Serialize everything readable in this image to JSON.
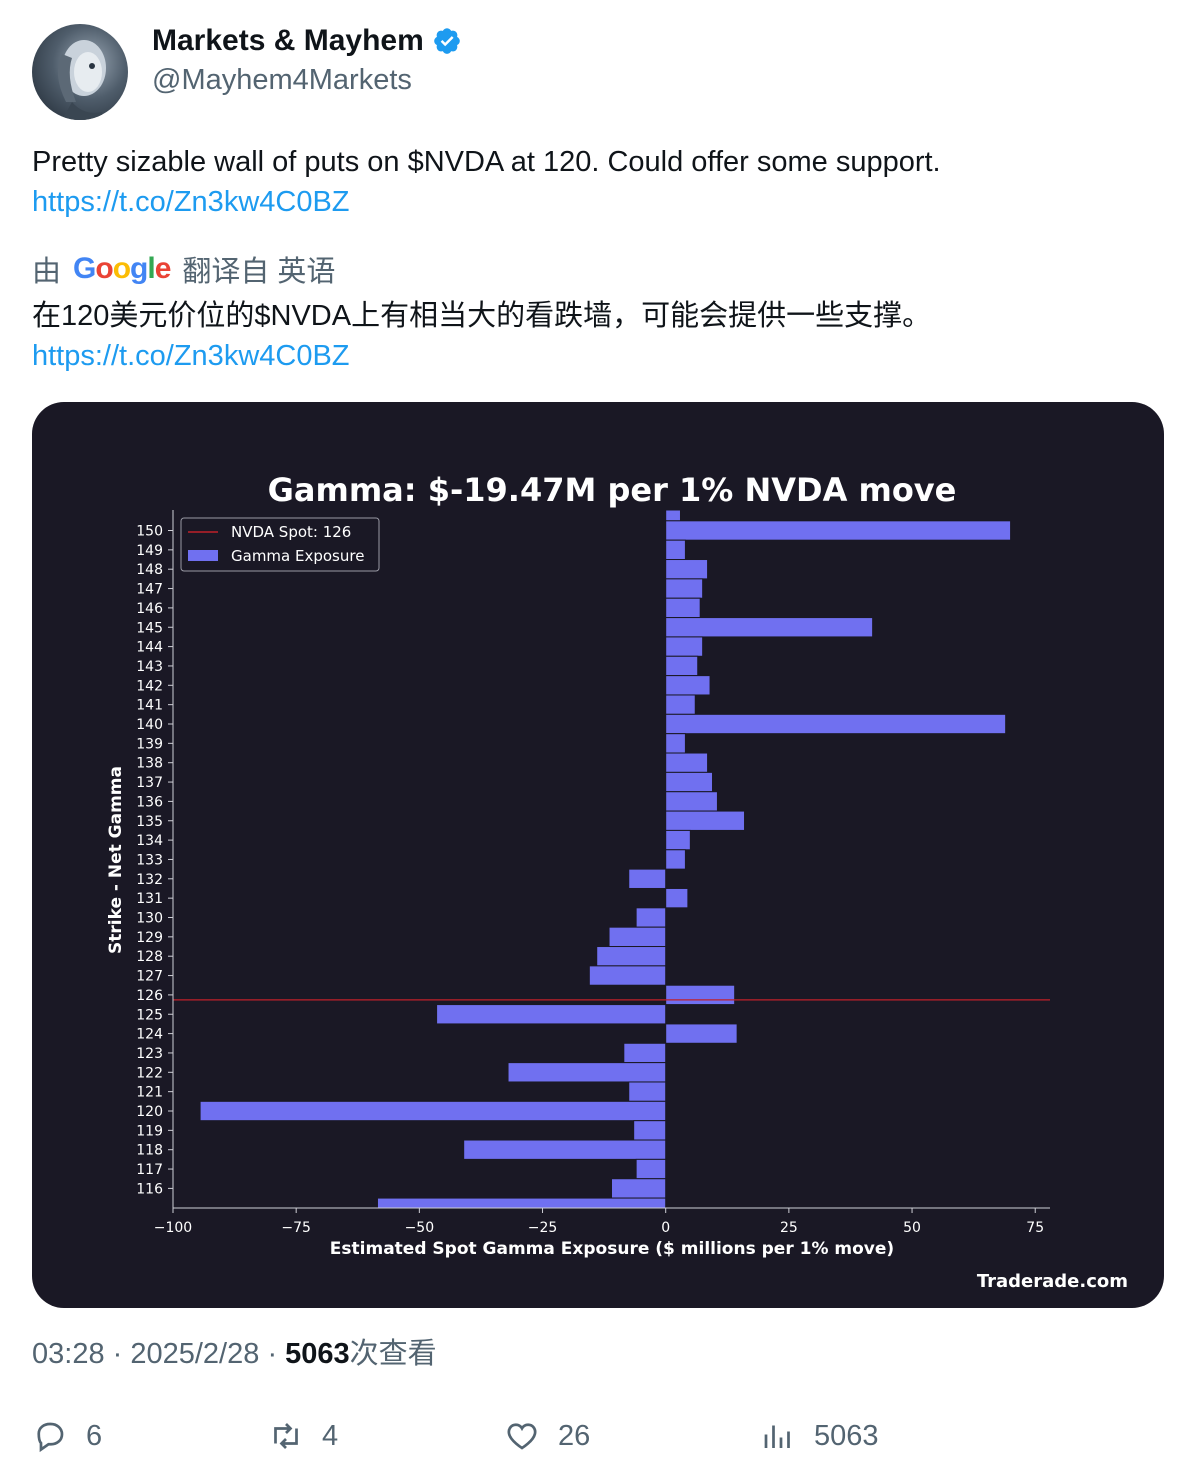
{
  "user": {
    "display_name": "Markets & Mayhem",
    "handle": "@Mayhem4Markets"
  },
  "tweet": {
    "text": "Pretty sizable wall of puts on $NVDA at 120. Could offer some support.",
    "link": "https://t.co/Zn3kw4C0BZ",
    "translation_prefix": "由",
    "translation_brand": "Google",
    "translation_suffix": "翻译自 英语",
    "translated_text": "在120美元价位的$NVDA上有相当大的看跌墙，可能会提供一些支撑。",
    "translated_link": "https://t.co/Zn3kw4C0BZ"
  },
  "meta": {
    "time": "03:28",
    "date": "2025/2/28",
    "views_count": "5063",
    "views_label": "次查看"
  },
  "actions": {
    "replies": "6",
    "retweets": "4",
    "likes": "26",
    "views": "5063"
  },
  "colors": {
    "bar": "#7070f0",
    "card_bg": "#1a1825",
    "spot_line": "#c0202a",
    "link": "#1d9bf0",
    "verified": "#1d9bf0"
  },
  "chart_data": {
    "type": "bar",
    "orientation": "horizontal",
    "title": "Gamma: $-19.47M per 1% NVDA move",
    "xlabel": "Estimated Spot Gamma Exposure ($ millions per 1% move)",
    "ylabel": "Strike - Net Gamma",
    "xlim": [
      -100,
      78
    ],
    "xticks": [
      -100,
      -75,
      -50,
      -25,
      0,
      25,
      50,
      75
    ],
    "xtick_labels": [
      "−100",
      "−75",
      "−50",
      "−25",
      "0",
      "25",
      "50",
      "75"
    ],
    "legend": {
      "position": "top-left",
      "entries": [
        "NVDA Spot: 126",
        "Gamma Exposure"
      ]
    },
    "spot_value": 126,
    "watermark": "Traderade.com",
    "strikes": [
      151,
      150,
      149,
      148,
      147,
      146,
      145,
      144,
      143,
      142,
      141,
      140,
      139,
      138,
      137,
      136,
      135,
      134,
      133,
      132,
      131,
      130,
      129,
      128,
      127,
      126,
      125,
      124,
      123,
      122,
      121,
      120,
      119,
      118,
      117,
      116,
      115
    ],
    "values": [
      3,
      70,
      4,
      8.5,
      7.5,
      7,
      42,
      7.5,
      6.5,
      9,
      6,
      69,
      4,
      8.5,
      9.5,
      10.5,
      16,
      5,
      4,
      -7.5,
      4.5,
      -6,
      -11.5,
      -14,
      -15.5,
      14,
      -46.5,
      14.5,
      -8.5,
      -32,
      -7.5,
      -94.5,
      -6.5,
      -41,
      -6,
      -11,
      -58.5
    ],
    "labeled_strikes": [
      150,
      149,
      148,
      147,
      146,
      145,
      144,
      143,
      142,
      141,
      140,
      139,
      138,
      137,
      136,
      135,
      134,
      133,
      132,
      131,
      130,
      129,
      128,
      127,
      126,
      125,
      124,
      123,
      122,
      121,
      120,
      119,
      118,
      117,
      116
    ]
  }
}
